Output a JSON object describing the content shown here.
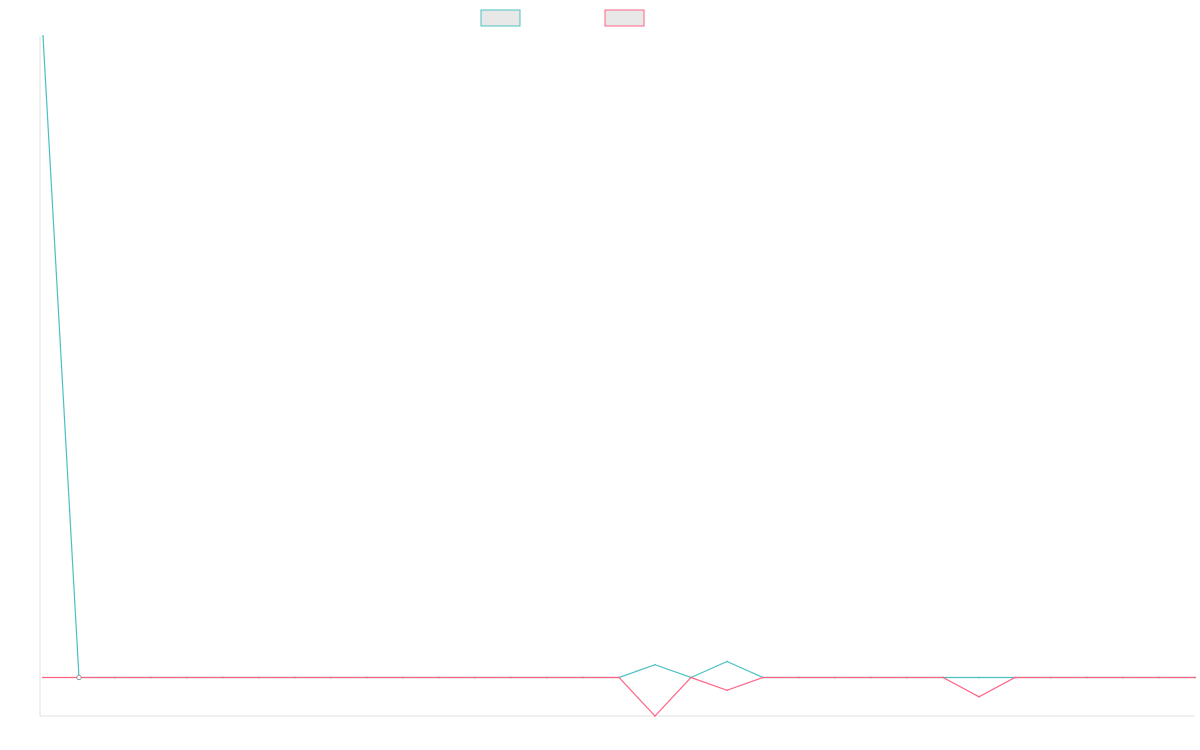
{
  "chart_data": {
    "type": "line",
    "title": "",
    "xlabel": "",
    "ylabel": "",
    "grid": false,
    "legend_position": "top-center",
    "x": [
      0,
      1,
      2,
      3,
      4,
      5,
      6,
      7,
      8,
      9,
      10,
      11,
      12,
      13,
      14,
      15,
      16,
      17,
      18,
      19,
      20,
      21,
      22,
      23,
      24,
      25,
      26,
      27,
      28,
      29,
      30,
      31,
      32
    ],
    "ylim": [
      -0.06,
      1
    ],
    "series": [
      {
        "color": "#4bc0c0",
        "fill": "#e8e8e8",
        "values": [
          1.0,
          0,
          0,
          0,
          0,
          0,
          0,
          0,
          0,
          0,
          0,
          0,
          0,
          0,
          0,
          0,
          0,
          0.02,
          0,
          0.025,
          0,
          0,
          0,
          0,
          0,
          0,
          0,
          0,
          0,
          0,
          0,
          0,
          0
        ]
      },
      {
        "color": "#ff6384",
        "fill": "#e8e8e8",
        "values": [
          0,
          0,
          0,
          0,
          0,
          0,
          0,
          0,
          0,
          0,
          0,
          0,
          0,
          0,
          0,
          0,
          0,
          -0.06,
          0,
          -0.02,
          0,
          0,
          0,
          0,
          0,
          0,
          -0.03,
          0,
          0,
          0,
          0,
          0,
          0
        ]
      }
    ]
  }
}
